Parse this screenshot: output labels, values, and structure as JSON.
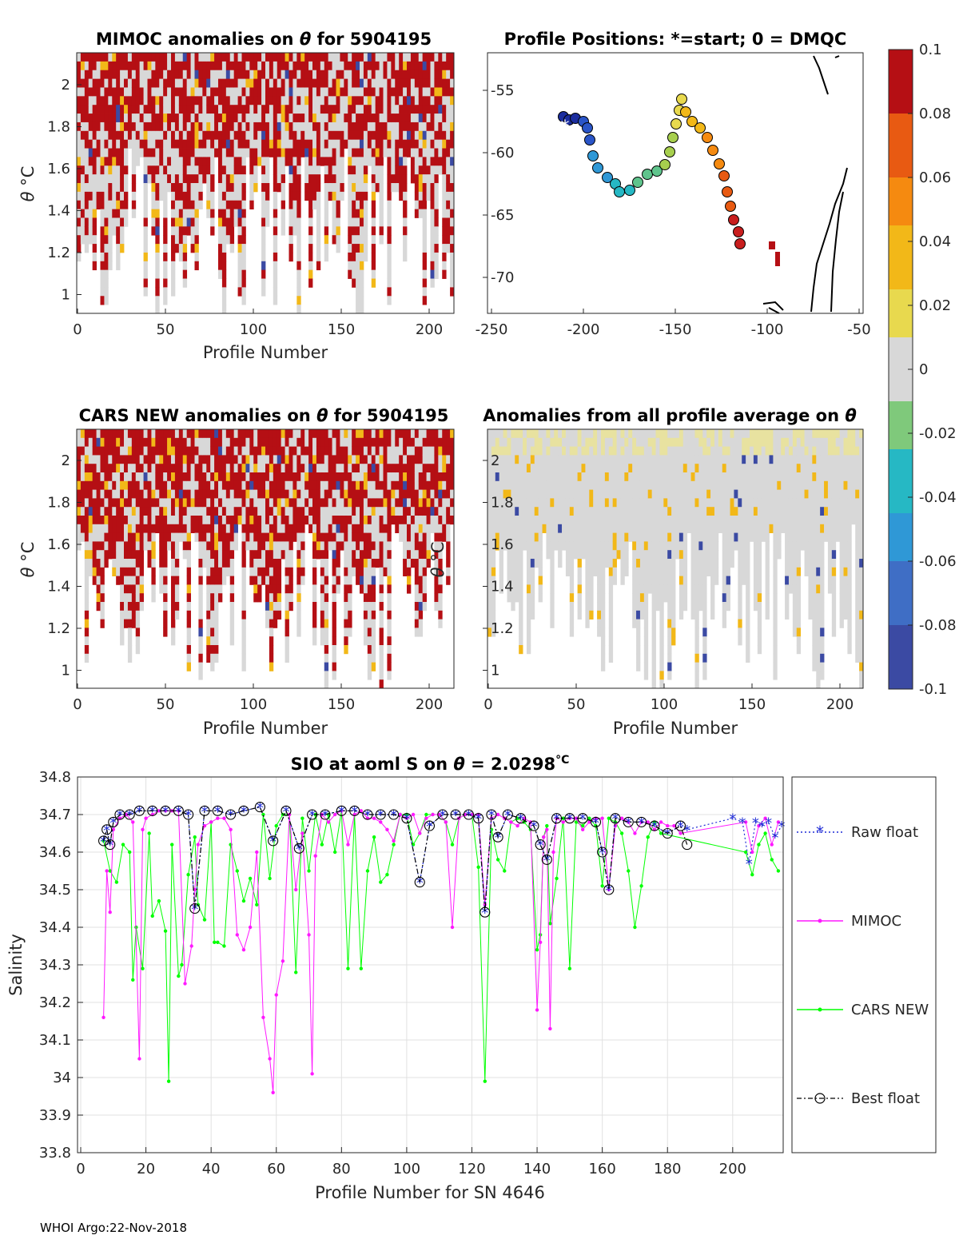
{
  "footer": "WHOI Argo:22-Nov-2018",
  "colorbar": {
    "ticks": [
      "0.1",
      "0.08",
      "0.06",
      "0.04",
      "0.02",
      "0",
      "-0.02",
      "-0.04",
      "-0.06",
      "-0.08",
      "-0.1"
    ],
    "range": [
      -0.1,
      0.1
    ],
    "colors": [
      "#3b4aa3",
      "#3f6ec5",
      "#2f98d6",
      "#26b8c4",
      "#7fc97b",
      "#d8d8d8",
      "#e8d94e",
      "#f2b818",
      "#f58a10",
      "#e85a12",
      "#b50f14"
    ]
  },
  "panels": {
    "mimoc": {
      "title_prefix": "MIMOC anomalies on ",
      "title_theta": "θ",
      "title_suffix": "  for 5904195",
      "ylabel_theta": "θ",
      "ylabel_unit": " °C",
      "xlabel": "Profile Number",
      "xticks": [
        "0",
        "50",
        "100",
        "150",
        "200"
      ],
      "yticks": [
        "2",
        "1.8",
        "1.6",
        "1.4",
        "1.2",
        "1"
      ]
    },
    "positions": {
      "title": "Profile Positions: *=start; 0 = DMQC",
      "xticks": [
        "-250",
        "-200",
        "-150",
        "-100",
        "-50"
      ],
      "yticks": [
        "-55",
        "-60",
        "-65",
        "-70"
      ]
    },
    "cars": {
      "title_prefix": "CARS NEW anomalies on ",
      "title_theta": "θ",
      "title_suffix": " for 5904195",
      "ylabel_theta": "θ",
      "ylabel_unit": " °C",
      "xlabel": "Profile Number",
      "xticks": [
        "0",
        "50",
        "100",
        "150",
        "200"
      ],
      "yticks": [
        "2",
        "1.8",
        "1.6",
        "1.4",
        "1.2",
        "1"
      ]
    },
    "average": {
      "title_prefix": "Anomalies from all profile average on ",
      "title_theta": "θ",
      "ylabel_theta": "θ",
      "ylabel_unit": " °C",
      "xlabel": "Profile Number",
      "xticks": [
        "0",
        "50",
        "100",
        "150",
        "200"
      ],
      "yticks": [
        "2",
        "1.8",
        "1.6",
        "1.4",
        "1.2",
        "1"
      ]
    }
  },
  "chart_data": {
    "type": "line",
    "title_prefix": "SIO at aoml S on ",
    "title_theta": "θ",
    "title_value": " = 2.0298",
    "title_unit": "°C",
    "xlabel": "Profile Number for SN 4646",
    "ylabel": "Salinity",
    "xlim": [
      0,
      215
    ],
    "ylim": [
      33.8,
      34.8
    ],
    "xticks": [
      "0",
      "20",
      "40",
      "60",
      "80",
      "100",
      "120",
      "140",
      "160",
      "180",
      "200"
    ],
    "yticks": [
      "34.8",
      "34.7",
      "34.6",
      "34.5",
      "34.4",
      "34.3",
      "34.2",
      "34.1",
      "34",
      "33.9",
      "33.8"
    ],
    "legend_position": "outside-right",
    "series": [
      {
        "name": "Raw float",
        "color": "#1f2bd6",
        "marker": "star",
        "style": "dotted",
        "x": [
          7,
          8,
          9,
          10,
          12,
          15,
          18,
          22,
          26,
          30,
          33,
          35,
          38,
          42,
          46,
          50,
          55,
          59,
          63,
          67,
          71,
          75,
          80,
          84,
          88,
          92,
          96,
          100,
          104,
          107,
          111,
          115,
          119,
          122,
          124,
          126,
          128,
          131,
          135,
          139,
          141,
          143,
          146,
          150,
          154,
          158,
          160,
          162,
          164,
          168,
          172,
          176,
          180,
          184,
          186,
          200,
          203,
          205,
          207,
          209,
          211,
          213,
          215
        ],
        "y": [
          34.63,
          34.66,
          34.62,
          34.68,
          34.7,
          34.7,
          34.71,
          34.71,
          34.71,
          34.71,
          34.7,
          34.45,
          34.71,
          34.71,
          34.7,
          34.71,
          34.72,
          34.63,
          34.71,
          34.61,
          34.7,
          34.7,
          34.71,
          34.71,
          34.7,
          34.7,
          34.7,
          34.69,
          34.52,
          34.67,
          34.7,
          34.7,
          34.7,
          34.69,
          34.44,
          34.7,
          34.64,
          34.7,
          34.69,
          34.67,
          34.62,
          34.58,
          34.69,
          34.69,
          34.69,
          34.68,
          34.6,
          34.5,
          34.69,
          34.68,
          34.68,
          34.67,
          34.65,
          34.67,
          34.66,
          34.69,
          34.68,
          34.57,
          34.68,
          34.67,
          34.68,
          34.64,
          34.67
        ]
      },
      {
        "name": "MIMOC",
        "color": "#ff19ff",
        "marker": "dot",
        "style": "solid",
        "x": [
          7,
          8,
          9,
          10,
          12,
          14,
          16,
          18,
          19,
          20,
          22,
          24,
          26,
          28,
          30,
          32,
          34,
          35,
          36,
          38,
          40,
          42,
          44,
          46,
          48,
          50,
          52,
          54,
          56,
          58,
          59,
          60,
          62,
          64,
          66,
          68,
          70,
          71,
          72,
          74,
          76,
          78,
          80,
          82,
          84,
          86,
          88,
          90,
          92,
          94,
          96,
          98,
          100,
          102,
          104,
          106,
          108,
          110,
          112,
          114,
          116,
          118,
          120,
          122,
          124,
          126,
          128,
          130,
          132,
          134,
          136,
          138,
          140,
          141,
          142,
          143,
          144,
          145,
          146,
          148,
          150,
          152,
          154,
          156,
          158,
          160,
          162,
          164,
          166,
          168,
          170,
          172,
          174,
          176,
          178,
          180,
          182,
          184,
          204,
          206,
          208,
          210,
          212,
          214
        ],
        "y": [
          34.16,
          34.55,
          34.44,
          34.66,
          34.69,
          34.7,
          34.68,
          34.05,
          34.66,
          34.69,
          34.7,
          34.71,
          34.71,
          34.71,
          34.71,
          34.25,
          34.35,
          34.5,
          34.62,
          34.67,
          34.68,
          34.69,
          34.69,
          34.66,
          34.38,
          34.34,
          34.4,
          34.6,
          34.16,
          34.05,
          33.96,
          34.22,
          34.31,
          34.7,
          34.5,
          34.65,
          34.38,
          34.01,
          34.59,
          34.7,
          34.68,
          34.7,
          34.71,
          34.62,
          34.7,
          34.71,
          34.69,
          34.69,
          34.68,
          34.66,
          34.63,
          34.7,
          34.69,
          34.7,
          34.65,
          34.69,
          34.7,
          34.7,
          34.68,
          34.4,
          34.69,
          34.7,
          34.7,
          34.7,
          34.46,
          34.69,
          34.7,
          34.69,
          34.68,
          34.67,
          34.69,
          34.68,
          34.18,
          34.36,
          34.64,
          34.66,
          34.13,
          34.6,
          34.69,
          34.68,
          34.69,
          34.69,
          34.66,
          34.68,
          34.69,
          34.69,
          34.5,
          34.67,
          34.69,
          34.68,
          34.65,
          34.68,
          34.68,
          34.66,
          34.68,
          34.67,
          34.67,
          34.65,
          34.68,
          34.6,
          34.67,
          34.69,
          34.62,
          34.68
        ]
      },
      {
        "name": "CARS NEW",
        "color": "#00ff00",
        "marker": "dot",
        "style": "solid",
        "x": [
          7,
          9,
          11,
          13,
          15,
          16,
          17,
          19,
          21,
          22,
          24,
          26,
          27,
          28,
          30,
          31,
          33,
          35,
          36,
          38,
          40,
          41,
          42,
          44,
          46,
          48,
          50,
          52,
          54,
          56,
          58,
          60,
          62,
          64,
          66,
          68,
          70,
          72,
          74,
          76,
          78,
          80,
          82,
          84,
          86,
          88,
          90,
          92,
          94,
          96,
          98,
          100,
          102,
          104,
          106,
          108,
          110,
          112,
          114,
          116,
          118,
          120,
          122,
          124,
          126,
          128,
          130,
          132,
          134,
          136,
          138,
          140,
          141,
          142,
          143,
          144,
          146,
          148,
          150,
          152,
          154,
          156,
          158,
          160,
          162,
          164,
          166,
          168,
          170,
          172,
          174,
          176,
          178,
          204,
          206,
          208,
          210,
          212,
          214
        ],
        "y": [
          34.63,
          34.55,
          34.52,
          34.62,
          34.6,
          34.26,
          34.4,
          34.29,
          34.65,
          34.43,
          34.47,
          34.39,
          33.99,
          34.62,
          34.27,
          34.3,
          34.54,
          34.64,
          34.46,
          34.42,
          34.68,
          34.36,
          34.36,
          34.35,
          34.62,
          34.55,
          34.47,
          34.53,
          34.46,
          34.7,
          34.53,
          34.67,
          34.7,
          34.7,
          34.28,
          34.69,
          34.55,
          34.7,
          34.62,
          34.7,
          34.6,
          34.71,
          34.29,
          34.7,
          34.29,
          34.55,
          34.64,
          34.52,
          34.54,
          34.62,
          34.7,
          34.7,
          34.62,
          34.65,
          34.7,
          34.7,
          34.7,
          34.68,
          34.62,
          34.69,
          34.7,
          34.7,
          34.56,
          33.99,
          34.66,
          34.58,
          34.55,
          34.68,
          34.69,
          34.68,
          34.66,
          34.34,
          34.38,
          34.64,
          34.67,
          34.41,
          34.53,
          34.69,
          34.29,
          34.68,
          34.67,
          34.69,
          34.67,
          34.51,
          34.69,
          34.68,
          34.65,
          34.55,
          34.4,
          34.51,
          34.64,
          34.68,
          34.65,
          34.6,
          34.54,
          34.62,
          34.65,
          34.58,
          34.55
        ]
      },
      {
        "name": "Best float",
        "color": "#000000",
        "marker": "circle",
        "style": "dashdot",
        "x": [
          7,
          8,
          9,
          10,
          12,
          15,
          18,
          22,
          26,
          30,
          33,
          35,
          38,
          42,
          46,
          50,
          55,
          59,
          63,
          67,
          71,
          75,
          80,
          84,
          88,
          92,
          96,
          100,
          104,
          107,
          111,
          115,
          119,
          122,
          124,
          126,
          128,
          131,
          135,
          139,
          141,
          143,
          146,
          150,
          154,
          158,
          160,
          162,
          164,
          168,
          172,
          176,
          180,
          184,
          186
        ],
        "y": [
          34.63,
          34.66,
          34.62,
          34.68,
          34.7,
          34.7,
          34.71,
          34.71,
          34.71,
          34.71,
          34.7,
          34.45,
          34.71,
          34.71,
          34.7,
          34.71,
          34.72,
          34.63,
          34.71,
          34.61,
          34.7,
          34.7,
          34.71,
          34.71,
          34.7,
          34.7,
          34.7,
          34.69,
          34.52,
          34.67,
          34.7,
          34.7,
          34.7,
          34.69,
          34.44,
          34.7,
          34.64,
          34.7,
          34.69,
          34.67,
          34.62,
          34.58,
          34.69,
          34.69,
          34.69,
          34.68,
          34.6,
          34.5,
          34.69,
          34.68,
          34.68,
          34.67,
          34.65,
          34.67,
          34.62
        ]
      }
    ]
  }
}
